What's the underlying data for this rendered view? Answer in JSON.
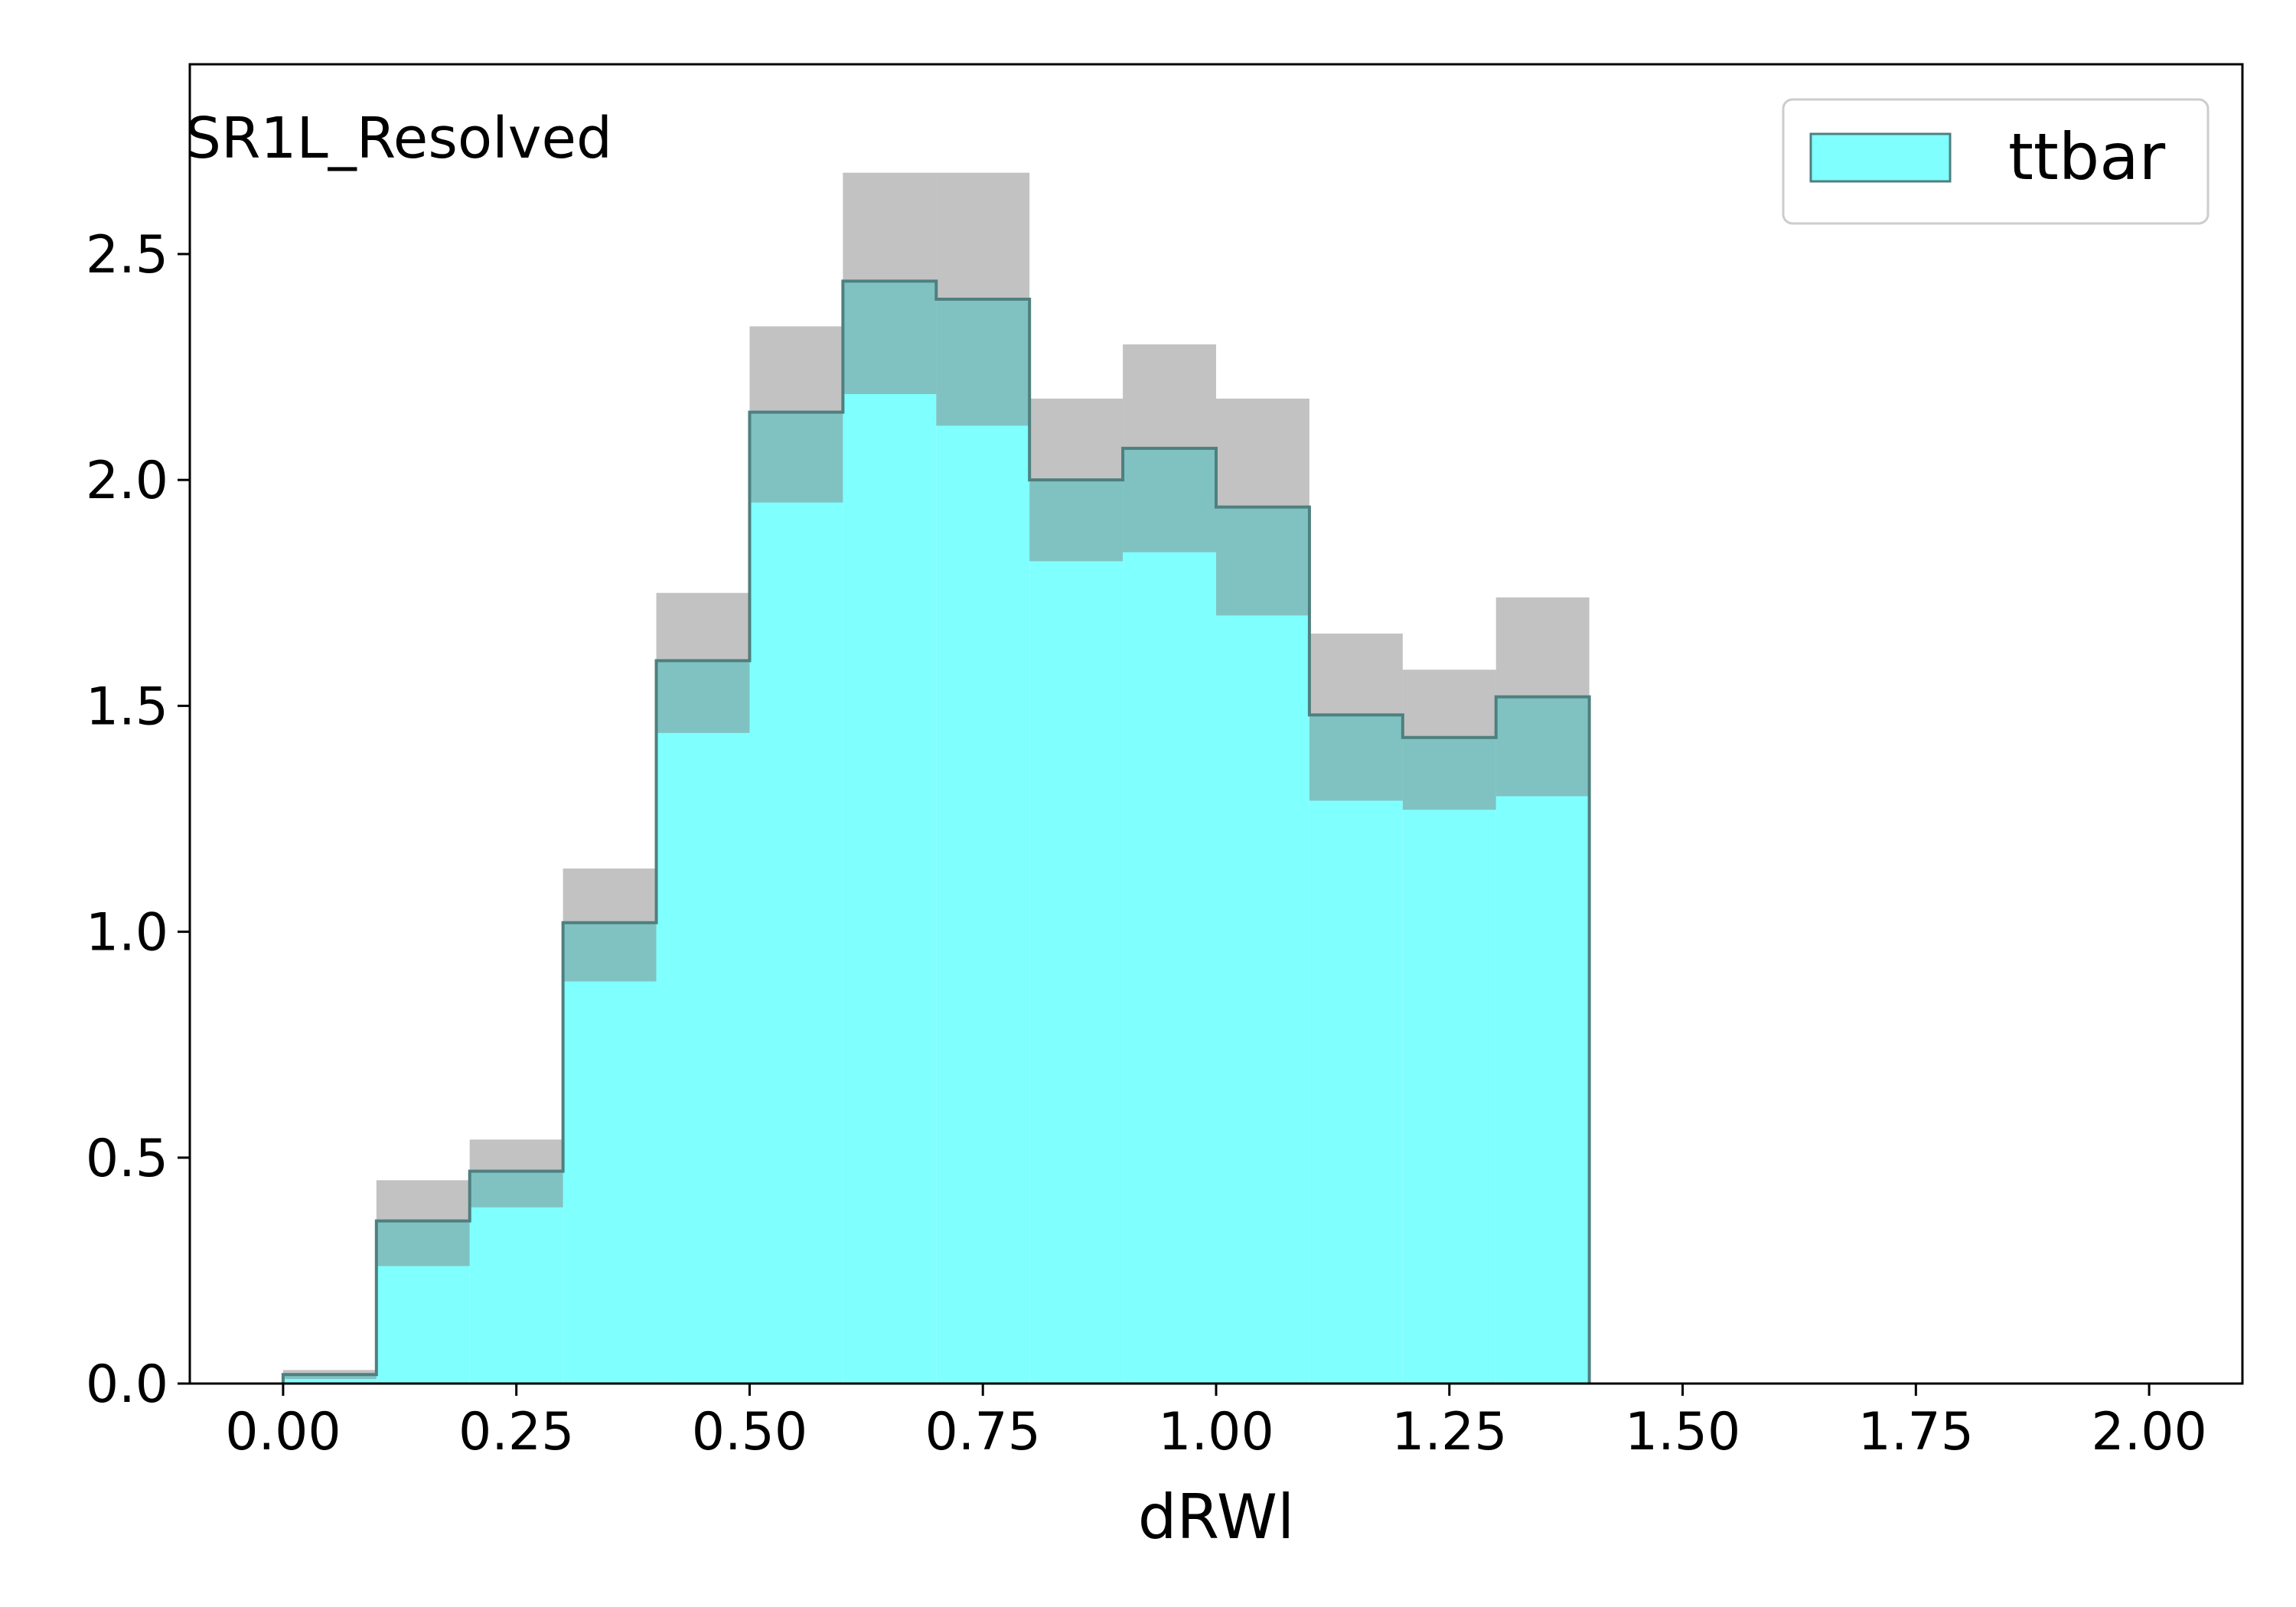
{
  "chart_data": {
    "type": "bar",
    "annotation": "SR1L_Resolved",
    "xlabel": "dRWl",
    "ylabel": "",
    "xlim": [
      -0.1,
      2.1
    ],
    "ylim": [
      0,
      2.92
    ],
    "xticks": [
      "0.00",
      "0.25",
      "0.50",
      "0.75",
      "1.00",
      "1.25",
      "1.50",
      "1.75",
      "2.00"
    ],
    "xtick_values": [
      0,
      0.25,
      0.5,
      0.75,
      1.0,
      1.25,
      1.5,
      1.75,
      2.0
    ],
    "yticks": [
      "0.0",
      "0.5",
      "1.0",
      "1.5",
      "2.0",
      "2.5"
    ],
    "ytick_values": [
      0,
      0.5,
      1.0,
      1.5,
      2.0,
      2.5
    ],
    "grid": false,
    "legend_position": "top-right",
    "bin_edges": [
      0.0,
      0.1,
      0.2,
      0.3,
      0.4,
      0.5,
      0.6,
      0.7,
      0.8,
      0.9,
      1.0,
      1.1,
      1.2,
      1.3,
      1.4
    ],
    "series": [
      {
        "name": "ttbar",
        "color": "#80ffff",
        "edge_color": "#4f7f7f",
        "values": [
          0.02,
          0.36,
          0.47,
          1.02,
          1.6,
          2.15,
          2.44,
          2.4,
          2.0,
          2.07,
          1.94,
          1.48,
          1.43,
          1.52
        ],
        "uncertainty_low": [
          0.01,
          0.26,
          0.39,
          0.89,
          1.44,
          1.95,
          2.19,
          2.12,
          1.82,
          1.84,
          1.7,
          1.29,
          1.27,
          1.3
        ],
        "uncertainty_high": [
          0.03,
          0.45,
          0.54,
          1.14,
          1.75,
          2.34,
          2.68,
          2.68,
          2.18,
          2.3,
          2.18,
          1.66,
          1.58,
          1.74
        ]
      }
    ],
    "uncertainty_color": "#808080"
  }
}
